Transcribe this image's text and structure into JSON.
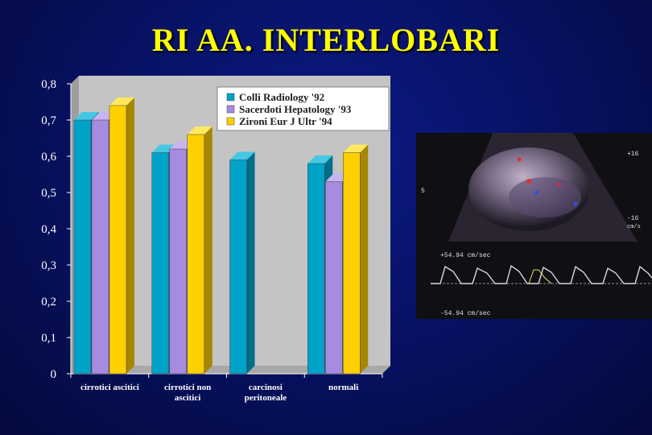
{
  "slide": {
    "title": "RI AA. INTERLOBARI"
  },
  "chart_data": {
    "type": "bar",
    "categories": [
      [
        "cirrotici ascitici"
      ],
      [
        "cirrotici non",
        "ascitici"
      ],
      [
        "carcinosi",
        "peritoneale"
      ],
      [
        "normali"
      ]
    ],
    "series": [
      {
        "name": "Colli Radiology '92",
        "values": [
          0.7,
          0.61,
          0.59,
          0.58
        ]
      },
      {
        "name": "Sacerdoti Hepatology '93",
        "values": [
          0.7,
          0.62,
          null,
          0.53
        ]
      },
      {
        "name": "Zironi Eur J Ultr '94",
        "values": [
          0.74,
          0.66,
          null,
          0.61
        ]
      }
    ],
    "ylim": [
      0,
      0.8
    ],
    "yticks": [
      "0",
      "0,1",
      "0,2",
      "0,3",
      "0,4",
      "0,5",
      "0,6",
      "0,7",
      "0,8"
    ],
    "legend_position": "top-right",
    "grid": false,
    "colors": {
      "series": [
        "#00a2c8",
        "#a78be0",
        "#ffd000"
      ],
      "series_dark": [
        "#006e88",
        "#6f57a8",
        "#a78600"
      ],
      "series_top": [
        "#45c8e4",
        "#c8b4f0",
        "#ffe860"
      ],
      "plot_bg": "#c4c4c4",
      "wall_side": "#9e9e9e",
      "label": "#ffffff"
    }
  },
  "ultrasound": {
    "scale_top": "+16",
    "scale_bottom": "-16",
    "scale_unit": "cm/s",
    "depth_marker": "5",
    "velocity_top": "+54.94 cm/sec",
    "velocity_bottom": "-54.94 cm/sec"
  }
}
